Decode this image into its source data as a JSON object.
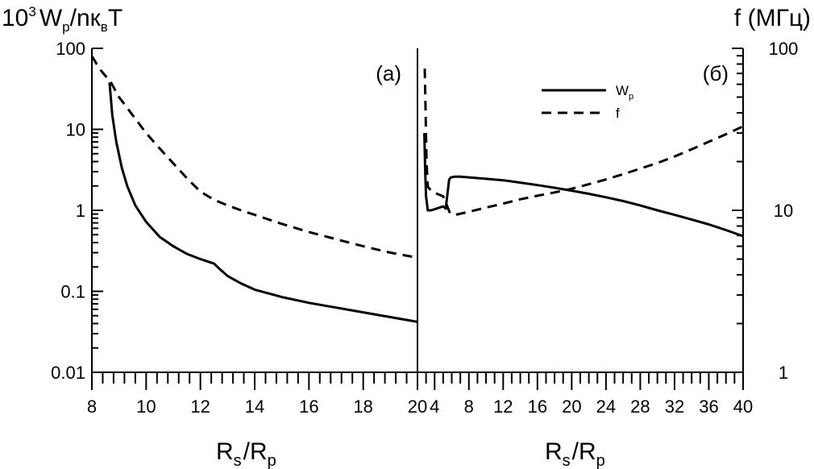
{
  "chart_data": [
    {
      "type": "line",
      "panel_label": "(а)",
      "ylabel_main": "10",
      "ylabel_sup": "3",
      "ylabel_rest": "W",
      "ylabel_sub": "p",
      "ylabel_tail": "/nк",
      "ylabel_sub2": "в",
      "ylabel_end": "T",
      "xlabel_main": "R",
      "xlabel_sub": "s",
      "xlabel_mid": "/R",
      "xlabel_sub2": "p",
      "x_scale": "linear",
      "y_scale": "log",
      "xlim": [
        8,
        20
      ],
      "ylim": [
        0.01,
        100
      ],
      "x_ticks": [
        "8",
        "10",
        "12",
        "14",
        "16",
        "18",
        "20"
      ],
      "y_ticks": [
        "0.01",
        "0.1",
        "1",
        "10",
        "100"
      ],
      "series": [
        {
          "style": "solid",
          "x": [
            8.65,
            8.75,
            8.9,
            9.1,
            9.3,
            9.6,
            10.0,
            10.5,
            11.0,
            11.5,
            12.0,
            12.5,
            12.7,
            13.0,
            13.5,
            14.0,
            15.0,
            16.0,
            17.0,
            18.0,
            19.0,
            20.0
          ],
          "y": [
            38,
            15,
            7,
            3.4,
            2.0,
            1.15,
            0.72,
            0.47,
            0.36,
            0.29,
            0.25,
            0.22,
            0.19,
            0.155,
            0.125,
            0.105,
            0.085,
            0.072,
            0.063,
            0.055,
            0.048,
            0.042
          ]
        },
        {
          "style": "dashed",
          "x": [
            8.0,
            8.3,
            8.7,
            9.0,
            9.5,
            10.0,
            10.5,
            11.0,
            11.5,
            12.0,
            12.5,
            13.0,
            13.5,
            14.0,
            15.0,
            16.0,
            17.0,
            18.0,
            19.0,
            20.0
          ],
          "y": [
            80,
            55,
            38,
            25,
            15,
            9,
            5.8,
            3.8,
            2.5,
            1.7,
            1.35,
            1.15,
            1.0,
            0.88,
            0.68,
            0.54,
            0.44,
            0.36,
            0.3,
            0.26
          ]
        }
      ]
    },
    {
      "type": "line",
      "panel_label": "(б)",
      "ylabel_right": "f  (МГц)",
      "xlabel_main": "R",
      "xlabel_sub": "s",
      "xlabel_mid": "/R",
      "xlabel_sub2": "p",
      "x_scale": "linear",
      "y_scale": "log",
      "xlim": [
        2,
        40
      ],
      "ylim_left": [
        0.01,
        100
      ],
      "ylim_right": [
        1,
        100
      ],
      "x_ticks": [
        "4",
        "8",
        "12",
        "16",
        "20",
        "24",
        "28",
        "32",
        "36",
        "40"
      ],
      "y_ticks_right": [
        "1",
        "10",
        "100"
      ],
      "legend": {
        "position": "top-center",
        "entries": [
          {
            "label_main": "W",
            "label_sub": "p",
            "style": "solid"
          },
          {
            "label_main": "f",
            "label_sub": "",
            "style": "dashed"
          }
        ]
      },
      "series": [
        {
          "axis": "left",
          "style": "solid",
          "x": [
            2.8,
            2.9,
            3.0,
            3.2,
            3.6,
            4.2,
            5.0,
            5.3,
            5.5,
            5.7,
            5.9,
            6.3,
            7.0,
            8.0,
            10.0,
            12.0,
            14.0,
            16.0,
            18.0,
            20.0,
            22.0,
            24.0,
            26.0,
            28.0,
            30.0,
            32.0,
            34.0,
            36.0,
            38.0,
            40.0
          ],
          "y": [
            9,
            3,
            1.5,
            1.0,
            1.0,
            1.05,
            1.12,
            1.05,
            1.6,
            2.4,
            2.55,
            2.6,
            2.6,
            2.55,
            2.45,
            2.35,
            2.2,
            2.05,
            1.9,
            1.75,
            1.6,
            1.45,
            1.3,
            1.15,
            1.0,
            0.88,
            0.77,
            0.67,
            0.57,
            0.48
          ]
        },
        {
          "axis": "right",
          "style": "dashed",
          "x": [
            2.85,
            2.95,
            3.05,
            3.2,
            3.6,
            4.2,
            5.0,
            5.8,
            6.5,
            8.0,
            10.0,
            12.0,
            14.0,
            16.0,
            18.0,
            20.0,
            22.0,
            24.0,
            26.0,
            28.0,
            30.0,
            32.0,
            34.0,
            36.0,
            38.0,
            40.0
          ],
          "y": [
            75,
            40,
            20,
            14,
            13.2,
            12.7,
            12.2,
            9.6,
            9.4,
            9.8,
            10.4,
            11.0,
            11.7,
            12.3,
            12.9,
            13.6,
            14.5,
            15.5,
            16.7,
            18.1,
            19.6,
            21.5,
            23.8,
            26.5,
            29.5,
            33.0
          ]
        }
      ]
    }
  ]
}
